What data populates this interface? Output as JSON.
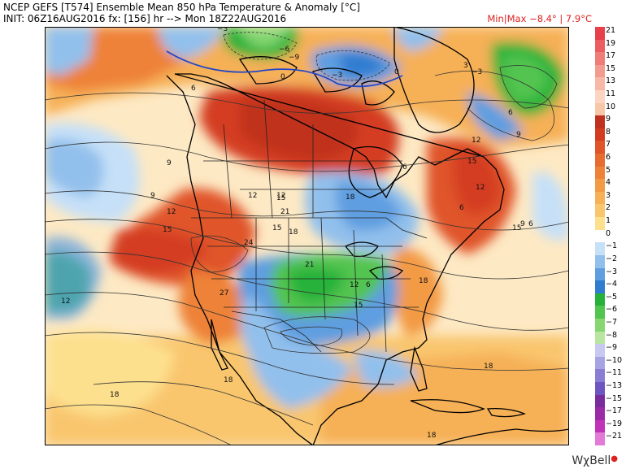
{
  "header": {
    "title": "NCEP GEFS [T574] Ensemble Mean 850 hPa Temperature & Anomaly [°C]",
    "init": "INIT: 06Z16AUG2016 fx: [156] hr --> Mon 18Z22AUG2016",
    "minmax": "Min|Max −8.4° | 7.9°C"
  },
  "legend": {
    "entries": [
      {
        "label": "21",
        "color": "#e8404a"
      },
      {
        "label": "19",
        "color": "#ec5d62"
      },
      {
        "label": "17",
        "color": "#f07c78"
      },
      {
        "label": "15",
        "color": "#f49b90"
      },
      {
        "label": "13",
        "color": "#f8b8a8"
      },
      {
        "label": "11",
        "color": "#fcd4c2"
      },
      {
        "label": "10",
        "color": "#f7c7a8"
      },
      {
        "label": "9",
        "color": "#c0301e"
      },
      {
        "label": "8",
        "color": "#d43c22"
      },
      {
        "label": "7",
        "color": "#e0542a"
      },
      {
        "label": "6",
        "color": "#e86c30"
      },
      {
        "label": "5",
        "color": "#ee8238"
      },
      {
        "label": "4",
        "color": "#f39a44"
      },
      {
        "label": "3",
        "color": "#f6b056"
      },
      {
        "label": "2",
        "color": "#f9c66e"
      },
      {
        "label": "1",
        "color": "#fde08e"
      },
      {
        "label": "0",
        "color": "#ffffff"
      },
      {
        "label": "−1",
        "color": "#c6e0f8"
      },
      {
        "label": "−2",
        "color": "#92c0ec"
      },
      {
        "label": "−3",
        "color": "#5e9ee0"
      },
      {
        "label": "−4",
        "color": "#2f7cd0"
      },
      {
        "label": "−5",
        "color": "#26b23a"
      },
      {
        "label": "−6",
        "color": "#52c450"
      },
      {
        "label": "−7",
        "color": "#86d672"
      },
      {
        "label": "−8",
        "color": "#b8e6a0"
      },
      {
        "label": "−9",
        "color": "#c8c8f0"
      },
      {
        "label": "−10",
        "color": "#a8a4e4"
      },
      {
        "label": "−11",
        "color": "#8a7ed4"
      },
      {
        "label": "−13",
        "color": "#6e56c2"
      },
      {
        "label": "−15",
        "color": "#7a2c9c"
      },
      {
        "label": "−17",
        "color": "#9a2aa6"
      },
      {
        "label": "−19",
        "color": "#c032b8"
      },
      {
        "label": "−21",
        "color": "#e47ad8"
      }
    ]
  },
  "contour_labels": [
    "−6",
    "−9",
    "−3",
    "0",
    "−3",
    "0",
    "−3",
    "3",
    "6",
    "6",
    "9",
    "12",
    "15",
    "9",
    "12",
    "15",
    "12",
    "15",
    "18",
    "21",
    "24",
    "27",
    "21",
    "18",
    "15",
    "12",
    "9",
    "6",
    "6",
    "6",
    "9",
    "12",
    "15",
    "18",
    "18",
    "18",
    "18",
    "18",
    "15",
    "12",
    "6",
    "12"
  ],
  "brand": "WχBell"
}
